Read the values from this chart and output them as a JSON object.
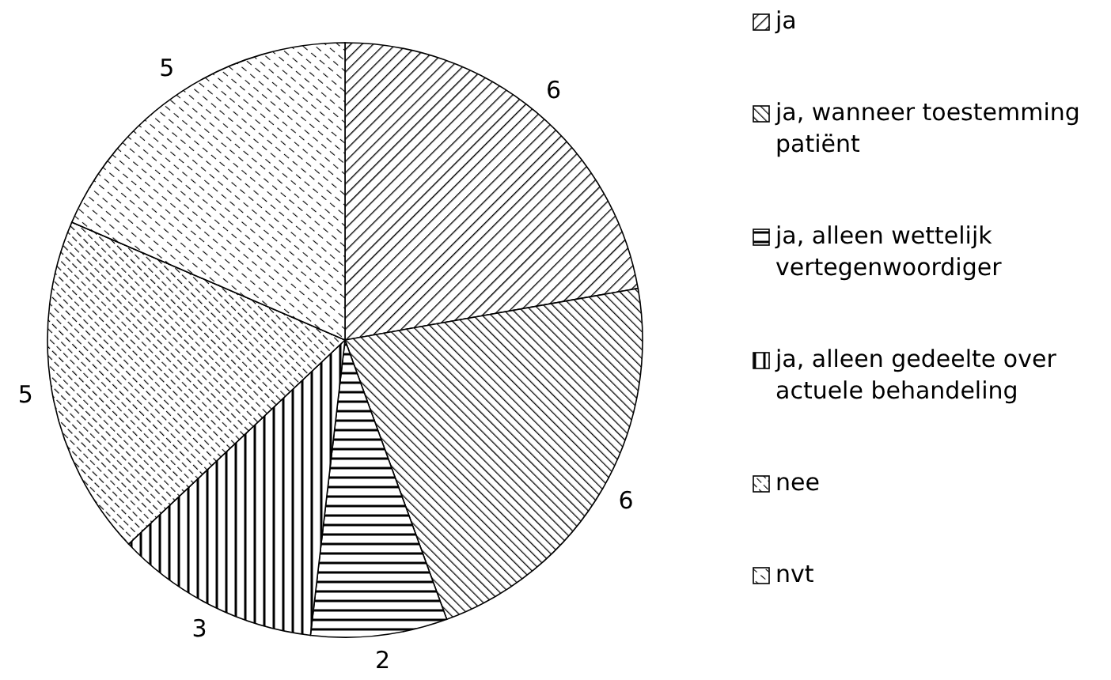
{
  "chart_data": {
    "type": "pie",
    "categories": [
      "ja",
      "ja, wanneer toestemming patiënt",
      "ja, alleen wettelijk vertegenwoordiger",
      "ja, alleen gedeelte over actuele behandeling",
      "nee",
      "nvt"
    ],
    "values": [
      6,
      6,
      2,
      3,
      5,
      5
    ],
    "data_labels": true,
    "legend": "right"
  }
}
